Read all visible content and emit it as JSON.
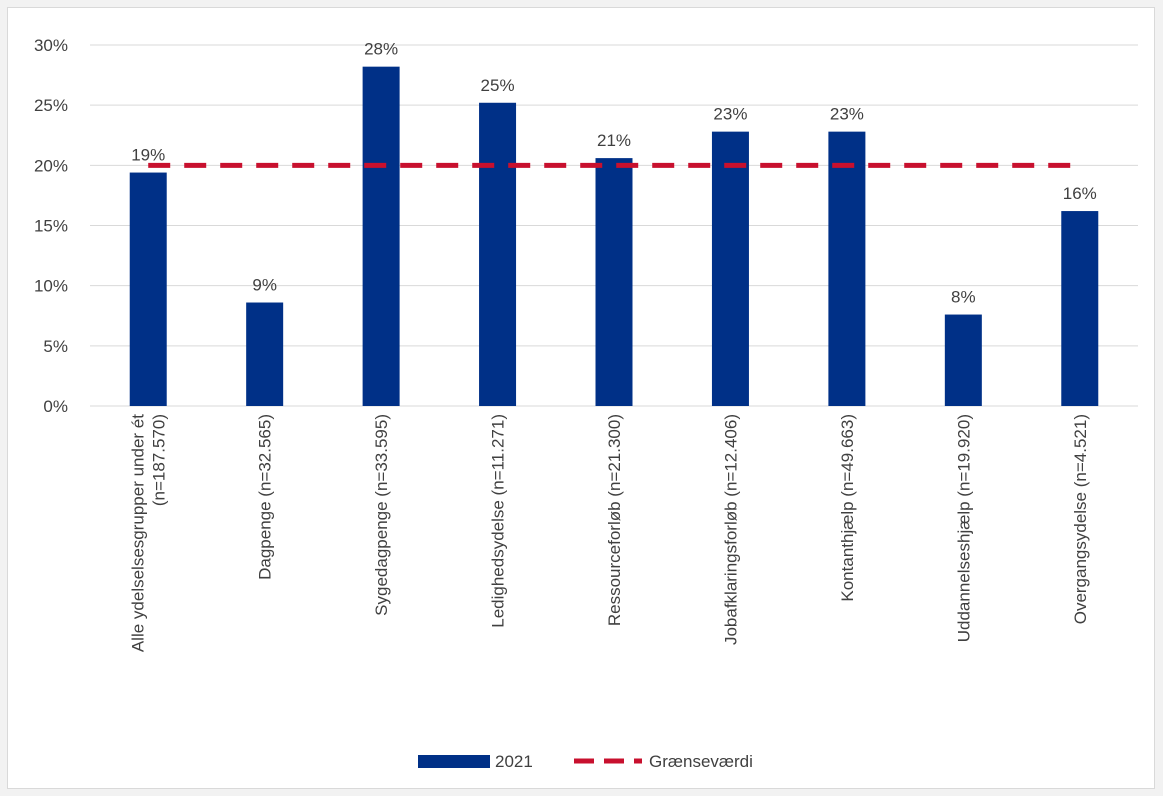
{
  "chart_data": {
    "type": "bar",
    "categories": [
      [
        "Alle ydelselsesgrupper under ét",
        "(n=187.570)"
      ],
      [
        "Dagpenge (n=32.565)"
      ],
      [
        "Sygedagpenge (n=33.595)"
      ],
      [
        "Ledighedsydelse (n=11.271)"
      ],
      [
        "Ressourceforløb (n=21.300)"
      ],
      [
        "Jobafklaringsforløb (n=12.406)"
      ],
      [
        "Kontanthjælp (n=49.663)"
      ],
      [
        "Uddannelseshjælp (n=19.920)"
      ],
      [
        "Overgangsydelse (n=4.521)"
      ]
    ],
    "series": [
      {
        "name": "2021",
        "type": "bar",
        "color": "#003087",
        "values": [
          19.4,
          8.6,
          28.2,
          25.2,
          20.6,
          22.8,
          22.8,
          7.6,
          16.2
        ],
        "labels": [
          "19%",
          "9%",
          "28%",
          "25%",
          "21%",
          "23%",
          "23%",
          "8%",
          "16%"
        ]
      },
      {
        "name": "Grænseværdi",
        "type": "line",
        "style": "dashed",
        "color": "#c8102e",
        "values": [
          20,
          20,
          20,
          20,
          20,
          20,
          20,
          20,
          20
        ]
      }
    ],
    "ylim": [
      0,
      30
    ],
    "yticks": [
      0,
      5,
      10,
      15,
      20,
      25,
      30
    ],
    "ytick_labels": [
      "0%",
      "5%",
      "10%",
      "15%",
      "20%",
      "25%",
      "30%"
    ],
    "grid": true,
    "legend": "bottom-center",
    "title": "",
    "xlabel": "",
    "ylabel": ""
  }
}
